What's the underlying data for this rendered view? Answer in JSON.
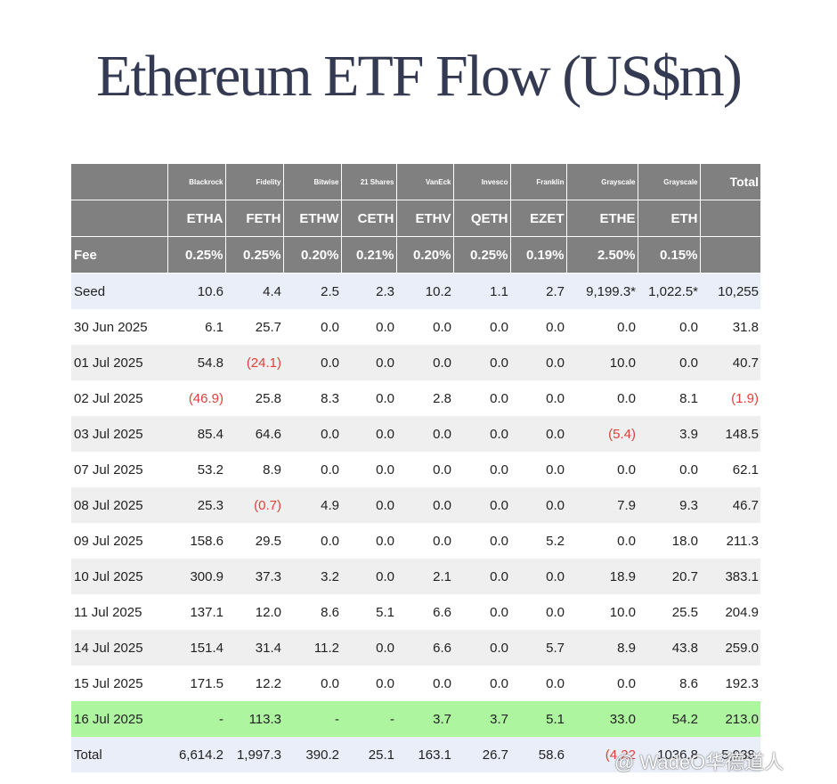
{
  "title": "Ethereum ETF Flow (US$m)",
  "header": {
    "issuers": [
      "Blackrock",
      "Fidelity",
      "Bitwise",
      "21 Shares",
      "VanEck",
      "Invesco",
      "Franklin",
      "Grayscale",
      "Grayscale"
    ],
    "total_label": "Total",
    "tickers": [
      "ETHA",
      "FETH",
      "ETHW",
      "CETH",
      "ETHV",
      "QETH",
      "EZET",
      "ETHE",
      "ETH"
    ],
    "fee_label": "Fee",
    "fees": [
      "0.25%",
      "0.25%",
      "0.20%",
      "0.21%",
      "0.20%",
      "0.25%",
      "0.19%",
      "2.50%",
      "0.15%"
    ]
  },
  "rows": [
    {
      "label": "Seed",
      "style": "seed",
      "values": [
        "10.6",
        "4.4",
        "2.5",
        "2.3",
        "10.2",
        "1.1",
        "2.7",
        "9,199.3*",
        "1,022.5*",
        "10,255"
      ]
    },
    {
      "label": "30 Jun 2025",
      "style": "white",
      "values": [
        "6.1",
        "25.7",
        "0.0",
        "0.0",
        "0.0",
        "0.0",
        "0.0",
        "0.0",
        "0.0",
        "31.8"
      ]
    },
    {
      "label": "01 Jul 2025",
      "style": "alt",
      "values": [
        "54.8",
        "(24.1)",
        "0.0",
        "0.0",
        "0.0",
        "0.0",
        "0.0",
        "10.0",
        "0.0",
        "40.7"
      ]
    },
    {
      "label": "02 Jul 2025",
      "style": "white",
      "values": [
        "(46.9)",
        "25.8",
        "8.3",
        "0.0",
        "2.8",
        "0.0",
        "0.0",
        "0.0",
        "8.1",
        "(1.9)"
      ]
    },
    {
      "label": "03 Jul 2025",
      "style": "alt",
      "values": [
        "85.4",
        "64.6",
        "0.0",
        "0.0",
        "0.0",
        "0.0",
        "0.0",
        "(5.4)",
        "3.9",
        "148.5"
      ]
    },
    {
      "label": "07 Jul 2025",
      "style": "white",
      "values": [
        "53.2",
        "8.9",
        "0.0",
        "0.0",
        "0.0",
        "0.0",
        "0.0",
        "0.0",
        "0.0",
        "62.1"
      ]
    },
    {
      "label": "08 Jul 2025",
      "style": "alt",
      "values": [
        "25.3",
        "(0.7)",
        "4.9",
        "0.0",
        "0.0",
        "0.0",
        "0.0",
        "7.9",
        "9.3",
        "46.7"
      ]
    },
    {
      "label": "09 Jul 2025",
      "style": "white",
      "values": [
        "158.6",
        "29.5",
        "0.0",
        "0.0",
        "0.0",
        "0.0",
        "5.2",
        "0.0",
        "18.0",
        "211.3"
      ]
    },
    {
      "label": "10 Jul 2025",
      "style": "alt",
      "values": [
        "300.9",
        "37.3",
        "3.2",
        "0.0",
        "2.1",
        "0.0",
        "0.0",
        "18.9",
        "20.7",
        "383.1"
      ]
    },
    {
      "label": "11 Jul 2025",
      "style": "white",
      "values": [
        "137.1",
        "12.0",
        "8.6",
        "5.1",
        "6.6",
        "0.0",
        "0.0",
        "10.0",
        "25.5",
        "204.9"
      ]
    },
    {
      "label": "14 Jul 2025",
      "style": "alt",
      "values": [
        "151.4",
        "31.4",
        "11.2",
        "0.0",
        "6.6",
        "0.0",
        "5.7",
        "8.9",
        "43.8",
        "259.0"
      ]
    },
    {
      "label": "15 Jul 2025",
      "style": "white",
      "values": [
        "171.5",
        "12.2",
        "0.0",
        "0.0",
        "0.0",
        "0.0",
        "0.0",
        "0.0",
        "8.6",
        "192.3"
      ]
    },
    {
      "label": "16 Jul 2025",
      "style": "highlight",
      "values": [
        "-",
        "113.3",
        "-",
        "-",
        "3.7",
        "3.7",
        "5.1",
        "33.0",
        "54.2",
        "213.0"
      ]
    },
    {
      "label": "Total",
      "style": "total",
      "values": [
        "6,614.2",
        "1,997.3",
        "390.2",
        "25.1",
        "163.1",
        "26.7",
        "58.6",
        "(4,22",
        "1036.8",
        "5,938."
      ]
    }
  ],
  "watermark": "@ WadeO华德道人",
  "colors": {
    "header_bg": "#808080",
    "seed_bg": "#e9eef8",
    "alt_bg": "#efefef",
    "highlight_bg": "#aef5a0",
    "negative": "#e0413a",
    "title": "#343a52"
  }
}
